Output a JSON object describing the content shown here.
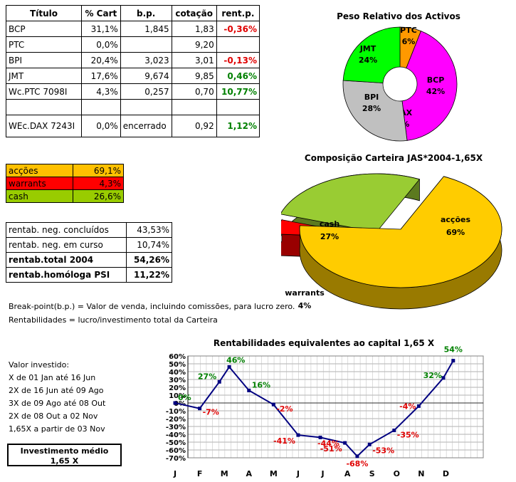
{
  "holdings": {
    "headers": [
      "Título",
      "% Cart",
      "b.p.",
      "cotação",
      "rent.p."
    ],
    "rows": [
      {
        "titulo": "BCP",
        "pct": "31,1%",
        "bp": "1,845",
        "cot": "1,83",
        "rent": "-0,36%",
        "sign": "neg"
      },
      {
        "titulo": "PTC",
        "pct": "0,0%",
        "bp": "",
        "cot": "9,20",
        "rent": "",
        "sign": ""
      },
      {
        "titulo": "BPI",
        "pct": "20,4%",
        "bp": "3,023",
        "cot": "3,01",
        "rent": "-0,13%",
        "sign": "neg"
      },
      {
        "titulo": "JMT",
        "pct": "17,6%",
        "bp": "9,674",
        "cot": "9,85",
        "rent": "0,46%",
        "sign": "pos"
      },
      {
        "titulo": "Wc.PTC 7098I",
        "pct": "4,3%",
        "bp": "0,257",
        "cot": "0,70",
        "rent": "10,77%",
        "sign": "pos"
      },
      {
        "titulo": "",
        "pct": "",
        "bp": "",
        "cot": "",
        "rent": "",
        "sign": ""
      },
      {
        "titulo": "WEc.DAX 7243I",
        "pct": "0,0%",
        "bp": "encerrado",
        "cot": "0,92",
        "rent": "1,12%",
        "sign": "pos"
      }
    ]
  },
  "allocation": [
    {
      "label": "acções",
      "value": "69,1%",
      "color": "#ffc000"
    },
    {
      "label": "warrants",
      "value": "4,3%",
      "color": "#ff0000"
    },
    {
      "label": "cash",
      "value": "26,6%",
      "color": "#99cc00"
    }
  ],
  "returns_table": [
    {
      "label": "rentab. neg. concluídos",
      "value": "43,53%",
      "bold": false
    },
    {
      "label": "rentab. neg. em curso",
      "value": "10,74%",
      "bold": false
    },
    {
      "label": "rentab.total 2004",
      "value": "54,26%",
      "bold": true
    },
    {
      "label": "rentab.homóloga PSI",
      "value": "11,22%",
      "bold": true
    }
  ],
  "notes": [
    "Break-point(b.p.) = Valor de venda, incluindo comissões, para lucro zero.",
    "Rentabilidades = lucro/investimento total da Carteira"
  ],
  "invested": {
    "title": "Valor investido:",
    "lines": [
      "X de 01 Jan até 16 Jun",
      "2X de 16 Jun até 09 Ago",
      "3X de 09 Ago até 08 Out",
      "2X de 08 Out a 02 Nov",
      "1,65X a partir de 03 Nov"
    ]
  },
  "avg_box": {
    "title": "Investimento médio",
    "value": "1,65 X"
  },
  "chart_data": [
    {
      "type": "pie",
      "title": "Peso Relativo dos Activos",
      "slices": [
        {
          "label": "PTC",
          "pct_label": "6%",
          "value": 6,
          "color": "#ff9900"
        },
        {
          "label": "BCP",
          "pct_label": "42%",
          "value": 42,
          "color": "#ff00ff"
        },
        {
          "label": "DAX",
          "pct_label": "0%",
          "value": 0,
          "color": "#ffffff"
        },
        {
          "label": "BPI",
          "pct_label": "28%",
          "value": 28,
          "color": "#c0c0c0"
        },
        {
          "label": "JMT",
          "pct_label": "24%",
          "value": 24,
          "color": "#00ff00"
        }
      ]
    },
    {
      "type": "pie",
      "title": "Composição Carteira JAS*2004-1,65X",
      "slices": [
        {
          "label": "acções",
          "pct_label": "69%",
          "value": 69,
          "color": "#ffcc00"
        },
        {
          "label": "warrants",
          "pct_label": "4%",
          "value": 4,
          "color": "#ff0000"
        },
        {
          "label": "cash",
          "pct_label": "27%",
          "value": 27,
          "color": "#99cc33"
        }
      ]
    },
    {
      "type": "line",
      "title": "Rentabilidades equivalentes ao capital 1,65 X",
      "categories": [
        "J",
        "F",
        "M",
        "A",
        "M",
        "J",
        "J",
        "A",
        "S",
        "O",
        "N",
        "D"
      ],
      "ylim": [
        -70,
        60
      ],
      "yticks": [
        "60%",
        "50%",
        "40%",
        "30%",
        "20%",
        "10%",
        "0%",
        "-10%",
        "-20%",
        "-30%",
        "-40%",
        "-50%",
        "-60%",
        "-70%"
      ],
      "points": [
        {
          "x": 0.0,
          "y": 0,
          "label": "0%"
        },
        {
          "x": 1.0,
          "y": -7,
          "label": "-7%"
        },
        {
          "x": 1.8,
          "y": 27,
          "label": "27%"
        },
        {
          "x": 2.2,
          "y": 46,
          "label": "46%"
        },
        {
          "x": 3.0,
          "y": 16,
          "label": "16%"
        },
        {
          "x": 4.0,
          "y": -2,
          "label": "-2%"
        },
        {
          "x": 5.0,
          "y": -41,
          "label": "-41%"
        },
        {
          "x": 5.9,
          "y": -44,
          "label": "-44%"
        },
        {
          "x": 6.9,
          "y": -51,
          "label": "-51%"
        },
        {
          "x": 7.4,
          "y": -68,
          "label": "-68%"
        },
        {
          "x": 7.9,
          "y": -53,
          "label": "-53%"
        },
        {
          "x": 8.9,
          "y": -35,
          "label": "-35%"
        },
        {
          "x": 9.9,
          "y": -4,
          "label": "-4%"
        },
        {
          "x": 10.9,
          "y": 32,
          "label": "32%"
        },
        {
          "x": 11.3,
          "y": 54,
          "label": "54%"
        }
      ],
      "line_color": "#000080",
      "grid": true
    }
  ]
}
